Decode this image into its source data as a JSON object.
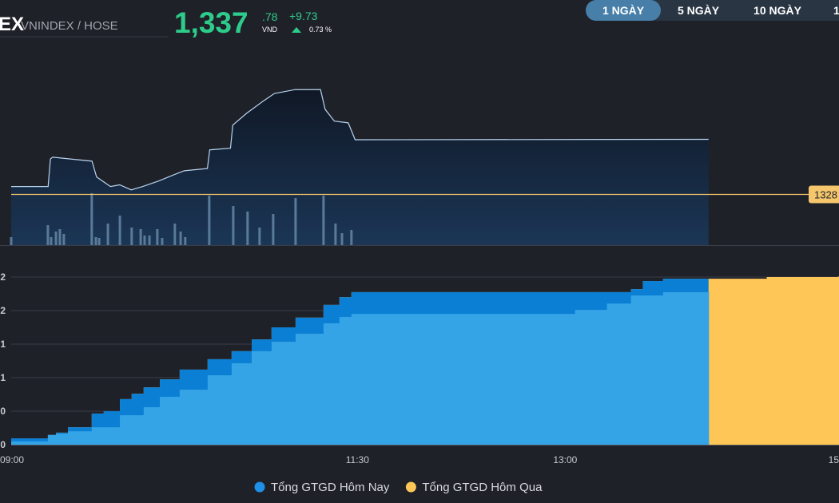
{
  "header": {
    "title": "EX",
    "subtitle": "VNINDEX / HOSE",
    "price": "1,337",
    "price_decimals": ".78",
    "currency": "VND",
    "change": "+9.73",
    "change_pct": "0.73 %"
  },
  "range_buttons": [
    "1 NGÀY",
    "5 NGÀY",
    "10 NGÀY",
    "1"
  ],
  "chart_data": [
    {
      "type": "line",
      "color": "#b8d4ee",
      "x": [
        0,
        16,
        17,
        18,
        35,
        37,
        43,
        47,
        52,
        57,
        64,
        70,
        75,
        85,
        86,
        95,
        96,
        102,
        109,
        114,
        123,
        134,
        136,
        140,
        146,
        149,
        302.1
      ],
      "values": [
        1329.4,
        1329.4,
        1334.3,
        1334.6,
        1333.9,
        1331.1,
        1329.4,
        1329.7,
        1328.8,
        1329.4,
        1330.4,
        1331.4,
        1332.2,
        1332.6,
        1335.9,
        1336.2,
        1340.3,
        1342.4,
        1344.5,
        1345.9,
        1346.6,
        1346.6,
        1343.1,
        1341.0,
        1340.7,
        1337.7,
        1337.78
      ],
      "xlim": [
        0,
        360
      ],
      "ylim": [
        1319,
        1354
      ],
      "reference_line": 1328,
      "reference_color": "#f5c66b",
      "volume": {
        "color": "#5a7a9a",
        "ylim": [
          0,
          247
        ],
        "x": [
          0,
          15.9,
          17.3,
          19.4,
          21.1,
          22.8,
          34.9,
          36.7,
          38.1,
          41.9,
          47.1,
          52.2,
          56.1,
          57.8,
          59.9,
          63.3,
          65.4,
          70.9,
          73.4,
          75.4,
          85.8,
          96.2,
          102.4,
          107.6,
          113.5,
          123.2,
          135.3,
          140.5,
          143.3,
          147.4
        ],
        "values": [
          10,
          25,
          10,
          17,
          20,
          14,
          65,
          10,
          9,
          27,
          37,
          22,
          20,
          12,
          12,
          20,
          9,
          27,
          17,
          10,
          62,
          49,
          42,
          22,
          39,
          59,
          62,
          27,
          15,
          19
        ]
      }
    },
    {
      "type": "area",
      "step": true,
      "grid": true,
      "overlap_color": "#0b7fd4",
      "xlim": [
        0,
        360
      ],
      "ylim": [
        0,
        5.5
      ],
      "xticks": [
        {
          "value": 0,
          "label": "09:00"
        },
        {
          "value": 150,
          "label": "11:30"
        },
        {
          "value": 240,
          "label": "13:00"
        },
        {
          "value": 360,
          "label": "15"
        }
      ],
      "yticks": [
        0,
        {
          "value": 1,
          "label": "0"
        },
        {
          "value": 2,
          "label": "1"
        },
        {
          "value": 3,
          "label": "1"
        },
        {
          "value": 4,
          "label": "2"
        },
        {
          "value": 5,
          "label": "2"
        }
      ],
      "series": [
        {
          "name": "Tổng GTGD Hôm Nay",
          "color": "#35a4e6",
          "x": [
            0,
            15.9,
            19.4,
            24.6,
            34.9,
            40.1,
            47.1,
            57.4,
            64.4,
            73,
            85.1,
            95.5,
            104.2,
            112.8,
            123.2,
            135.3,
            142.2,
            147.4,
            237.4,
            244.3,
            258.1,
            268.5,
            282.4,
            302.1
          ],
          "values": [
            0.1,
            0.29,
            0.33,
            0.4,
            0.52,
            0.52,
            0.88,
            1.12,
            1.43,
            1.64,
            2.07,
            2.43,
            2.79,
            3.07,
            3.31,
            3.62,
            3.81,
            3.9,
            3.9,
            4.02,
            4.21,
            4.45,
            4.55,
            4.57
          ]
        },
        {
          "name": "Tổng GTGD Hôm Qua",
          "color": "#fec657",
          "x": [
            0,
            15.9,
            19.4,
            24.6,
            34.9,
            40.1,
            47.1,
            52.2,
            57.4,
            64.4,
            73,
            85.1,
            95.5,
            104.2,
            112.8,
            123.2,
            135.3,
            142.2,
            147.4,
            254.7,
            268.5,
            273.7,
            282.4,
            327.3,
            358.5
          ],
          "values": [
            0.19,
            0.29,
            0.36,
            0.52,
            0.93,
            1.0,
            1.36,
            1.52,
            1.71,
            1.95,
            2.24,
            2.55,
            2.79,
            3.14,
            3.5,
            3.79,
            4.17,
            4.4,
            4.55,
            4.55,
            4.64,
            4.88,
            4.95,
            5.0,
            5.02
          ]
        }
      ]
    }
  ]
}
